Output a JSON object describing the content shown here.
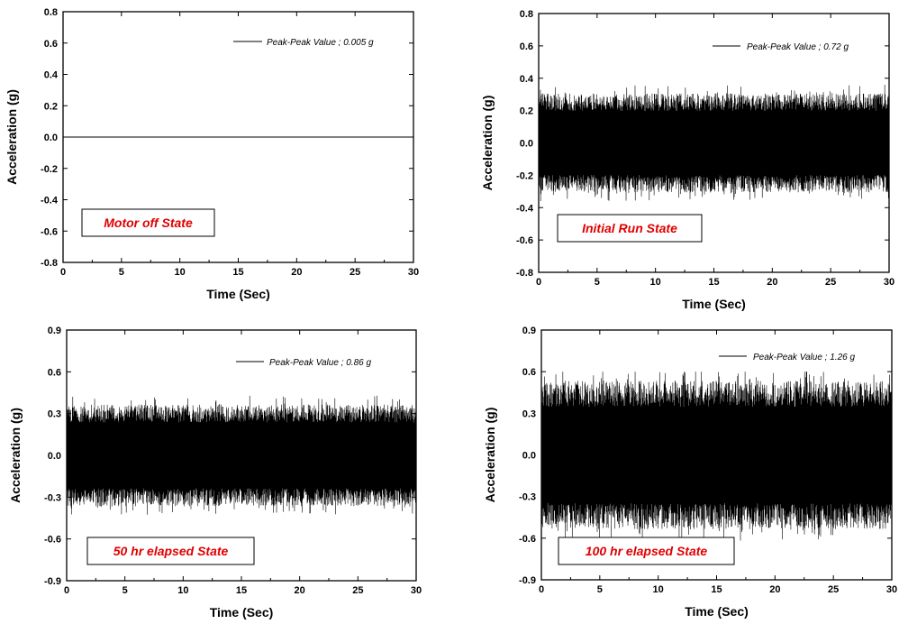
{
  "chart_data": [
    {
      "type": "line",
      "xlabel": "Time (Sec)",
      "ylabel": "Acceleration (g)",
      "xlim": [
        0,
        30
      ],
      "ylim": [
        -0.8,
        0.8
      ],
      "xticks": [
        0,
        5,
        10,
        15,
        20,
        25,
        30
      ],
      "yticks": [
        "-0.8",
        "-0.6",
        "-0.4",
        "-0.2",
        "0.0",
        "0.2",
        "0.4",
        "0.6",
        "0.8"
      ],
      "legend": "Peak-Peak Value ; 0.005 g",
      "legend_position": "top-right",
      "state_label": "Motor off State",
      "state_label_color": "#e00000",
      "state_label_position": "bottom-left",
      "grid": false,
      "series": [
        {
          "x_range": [
            0,
            30
          ],
          "mean": 0.0,
          "peak_peak": 0.005,
          "envelope": [
            -0.0025,
            0.0025
          ]
        }
      ]
    },
    {
      "type": "line",
      "xlabel": "Time (Sec)",
      "ylabel": "Acceleration (g)",
      "xlim": [
        0,
        30
      ],
      "ylim": [
        -0.8,
        0.8
      ],
      "xticks": [
        0,
        5,
        10,
        15,
        20,
        25,
        30
      ],
      "yticks": [
        "-0.8",
        "-0.6",
        "-0.4",
        "-0.2",
        "0.0",
        "0.2",
        "0.4",
        "0.6",
        "0.8"
      ],
      "legend": "Peak-Peak Value ; 0.72 g",
      "legend_position": "top-right",
      "state_label": "Initial Run State",
      "state_label_color": "#e00000",
      "state_label_position": "bottom-left",
      "grid": false,
      "series": [
        {
          "x_range": [
            0,
            30
          ],
          "mean": 0.0,
          "peak_peak": 0.72,
          "envelope": [
            -0.36,
            0.36
          ]
        }
      ]
    },
    {
      "type": "line",
      "xlabel": "Time (Sec)",
      "ylabel": "Acceleration (g)",
      "xlim": [
        0,
        30
      ],
      "ylim": [
        -0.9,
        0.9
      ],
      "xticks": [
        0,
        5,
        10,
        15,
        20,
        25,
        30
      ],
      "yticks": [
        "-0.9",
        "-0.6",
        "-0.3",
        "0.0",
        "0.3",
        "0.6",
        "0.9"
      ],
      "legend": "Peak-Peak Value ; 0.86 g",
      "legend_position": "top-right",
      "state_label": "50 hr elapsed State",
      "state_label_color": "#e00000",
      "state_label_position": "bottom-left",
      "grid": false,
      "series": [
        {
          "x_range": [
            0,
            30
          ],
          "mean": 0.0,
          "peak_peak": 0.86,
          "envelope": [
            -0.43,
            0.43
          ]
        }
      ]
    },
    {
      "type": "line",
      "xlabel": "Time (Sec)",
      "ylabel": "Acceleration (g)",
      "xlim": [
        0,
        30
      ],
      "ylim": [
        -0.9,
        0.9
      ],
      "xticks": [
        0,
        5,
        10,
        15,
        20,
        25,
        30
      ],
      "yticks": [
        "-0.9",
        "-0.6",
        "-0.3",
        "0.0",
        "0.3",
        "0.6",
        "0.9"
      ],
      "legend": "Peak-Peak Value ; 1.26 g",
      "legend_position": "top-right",
      "state_label": "100 hr elapsed State",
      "state_label_color": "#e00000",
      "state_label_position": "bottom-left",
      "grid": false,
      "series": [
        {
          "x_range": [
            0,
            30
          ],
          "mean": 0.0,
          "peak_peak": 1.26,
          "envelope": [
            -0.66,
            0.6
          ]
        }
      ]
    }
  ]
}
